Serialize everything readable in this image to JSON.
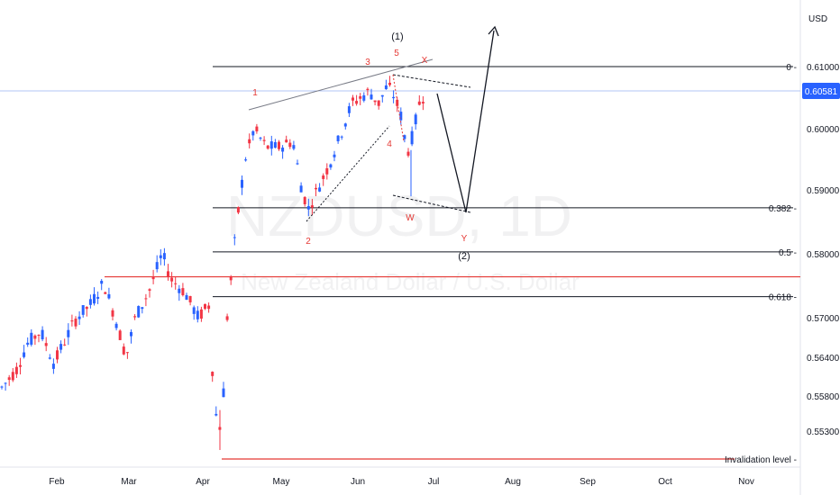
{
  "chart_data": {
    "type": "candlestick",
    "symbol": "NZDUSD, 1D",
    "description": "New Zealand Dollar / U.S. Dollar",
    "currency": "USD",
    "last_price": 0.60581,
    "price_ticks": [
      0.61,
      0.6,
      0.59,
      0.58,
      0.57,
      0.564,
      0.558,
      0.553
    ],
    "month_ticks": [
      "Feb",
      "Mar",
      "Apr",
      "May",
      "Jun",
      "Jul",
      "Aug",
      "Sep",
      "Oct",
      "Nov"
    ],
    "fib_levels": [
      {
        "label": "0",
        "price": 0.61
      },
      {
        "label": "0.382",
        "price": 0.5872
      },
      {
        "label": "0.5",
        "price": 0.5803
      },
      {
        "label": "0.618",
        "price": 0.5733
      }
    ],
    "horizontal_levels": [
      {
        "label": "",
        "price": 0.5764,
        "color": "#e53935"
      },
      {
        "label": "Invalidation level",
        "price": 0.5523,
        "color": "#e53935"
      }
    ],
    "wave_labels": {
      "minor": [
        "1",
        "2",
        "3",
        "4",
        "5",
        "X",
        "W",
        "Y"
      ],
      "degree": [
        "(1)",
        "(2)"
      ]
    },
    "colors": {
      "up": "#2962ff",
      "down": "#f23645",
      "level": "#131722",
      "invalidation": "#e53935",
      "last_price": "#2962ff"
    }
  }
}
